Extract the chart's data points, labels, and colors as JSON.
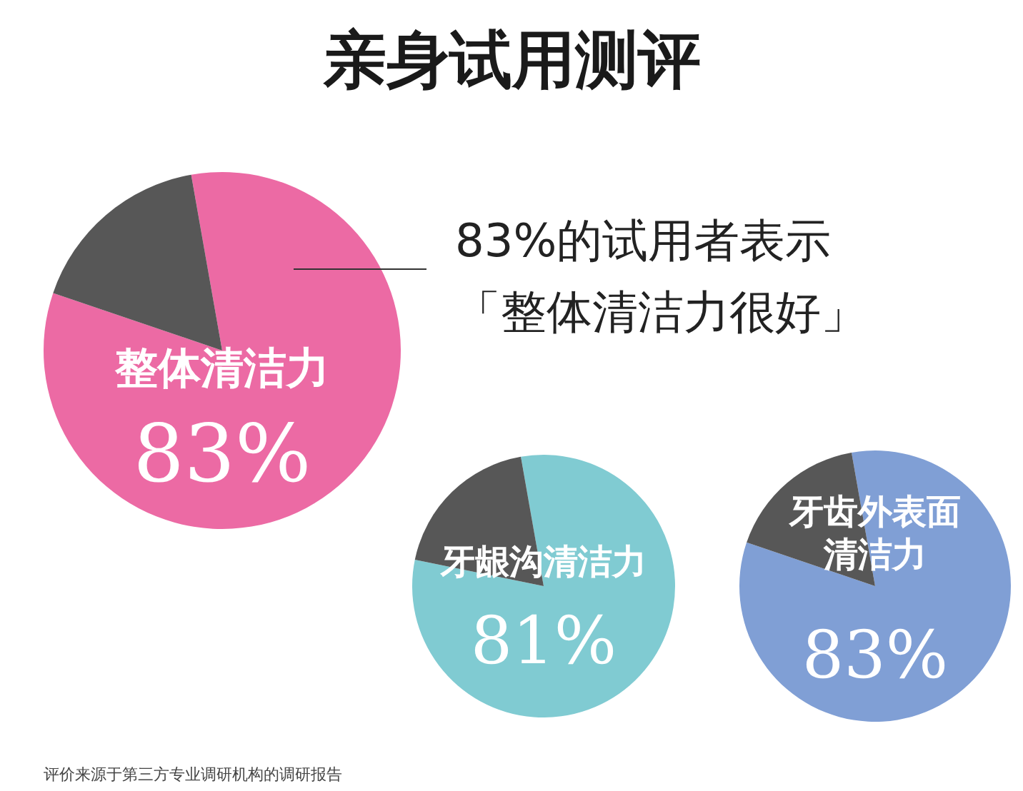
{
  "chart_data": [
    {
      "type": "pie",
      "title": "亲身试用测评",
      "categories": [
        "整体清洁力",
        null
      ],
      "values": [
        83,
        17
      ],
      "colors": [
        "#ec6aa4",
        "#575757"
      ],
      "value_labels": [
        "83%",
        null
      ],
      "annotations": [
        "83%的试用者表示",
        "「整体清洁力很好」",
        "评价来源于第三方专业调研机构的调研报告"
      ]
    },
    {
      "type": "pie",
      "categories": [
        "牙龈沟清洁力",
        null
      ],
      "values": [
        81,
        19
      ],
      "colors": [
        "#80cbd2",
        "#575757"
      ],
      "value_labels": [
        "81%",
        null
      ]
    },
    {
      "type": "pie",
      "categories": [
        "牙齿外表面清洁力",
        null
      ],
      "values": [
        83,
        17
      ],
      "colors": [
        "#809fd5",
        "#575757"
      ],
      "value_labels": [
        "83%",
        null
      ]
    }
  ]
}
